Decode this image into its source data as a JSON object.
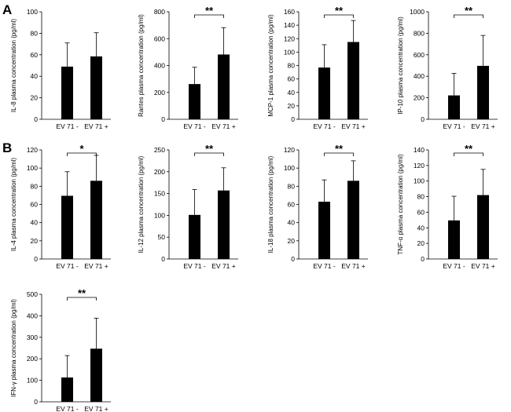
{
  "panel_labels": [
    "A",
    "B"
  ],
  "chart_data": [
    {
      "type": "bar",
      "panel": "A",
      "ylabel": "IL-8 plasma concentration (pg/ml)",
      "categories": [
        "EV 71 -",
        "EV 71 +"
      ],
      "values": [
        49,
        58.5
      ],
      "errors": [
        22,
        22
      ],
      "ylim": [
        0,
        100
      ],
      "yticks": [
        0,
        20,
        40,
        60,
        80,
        100
      ],
      "significance": ""
    },
    {
      "type": "bar",
      "ylabel": "Rantes plasma concentration (pg/ml)",
      "categories": [
        "EV 71 -",
        "EV 71 +"
      ],
      "values": [
        262,
        482
      ],
      "errors": [
        125,
        200
      ],
      "ylim": [
        0,
        800
      ],
      "yticks": [
        0,
        200,
        400,
        600,
        800
      ],
      "significance": "**"
    },
    {
      "type": "bar",
      "ylabel": "MCP-1 plasma concentration (pg/ml)",
      "categories": [
        "EV 71 -",
        "EV 71 +"
      ],
      "values": [
        77,
        115
      ],
      "errors": [
        34,
        32
      ],
      "ylim": [
        0,
        160
      ],
      "yticks": [
        0,
        20,
        40,
        60,
        80,
        100,
        120,
        140,
        160
      ],
      "significance": "**"
    },
    {
      "type": "bar",
      "ylabel": "IP-10 plasma concentration (pg/ml)",
      "categories": [
        "EV 71 -",
        "EV 71 +"
      ],
      "values": [
        222,
        497
      ],
      "errors": [
        205,
        283
      ],
      "ylim": [
        0,
        1000
      ],
      "yticks": [
        0,
        200,
        400,
        600,
        800,
        1000
      ],
      "significance": "**"
    },
    {
      "type": "bar",
      "panel": "B",
      "ylabel": "IL-4 plasma concentration (pg/ml)",
      "categories": [
        "EV 71 -",
        "EV 71 +"
      ],
      "values": [
        69.5,
        86
      ],
      "errors": [
        26.5,
        28
      ],
      "ylim": [
        0,
        120
      ],
      "yticks": [
        0,
        20,
        40,
        60,
        80,
        100,
        120
      ],
      "significance": "*"
    },
    {
      "type": "bar",
      "ylabel": "IL-12 plasma concentration (pg/ml)",
      "categories": [
        "EV 71 -",
        "EV 71 +"
      ],
      "values": [
        101,
        157
      ],
      "errors": [
        58,
        52
      ],
      "ylim": [
        0,
        250
      ],
      "yticks": [
        0,
        50,
        100,
        150,
        200,
        250
      ],
      "significance": "**"
    },
    {
      "type": "bar",
      "ylabel": "IL-18 plasma concentration (pg/ml)",
      "categories": [
        "EV 71 -",
        "EV 71 +"
      ],
      "values": [
        63,
        86
      ],
      "errors": [
        24,
        22
      ],
      "ylim": [
        0,
        120
      ],
      "yticks": [
        0,
        20,
        40,
        60,
        80,
        100,
        120
      ],
      "significance": "**"
    },
    {
      "type": "bar",
      "ylabel": "TNF-α plasma concentration (pg/ml)",
      "categories": [
        "EV 71 -",
        "EV 71 +"
      ],
      "values": [
        49.5,
        82
      ],
      "errors": [
        31,
        33
      ],
      "ylim": [
        0,
        140
      ],
      "yticks": [
        0,
        20,
        40,
        60,
        80,
        100,
        120,
        140
      ],
      "significance": "**"
    },
    {
      "type": "bar",
      "ylabel": "IFN-γ plasma concentration (pg/ml)",
      "categories": [
        "EV 71 -",
        "EV 71 +"
      ],
      "values": [
        113,
        247
      ],
      "errors": [
        102,
        142
      ],
      "ylim": [
        0,
        500
      ],
      "yticks": [
        0,
        100,
        200,
        300,
        400,
        500
      ],
      "significance": "**"
    }
  ]
}
